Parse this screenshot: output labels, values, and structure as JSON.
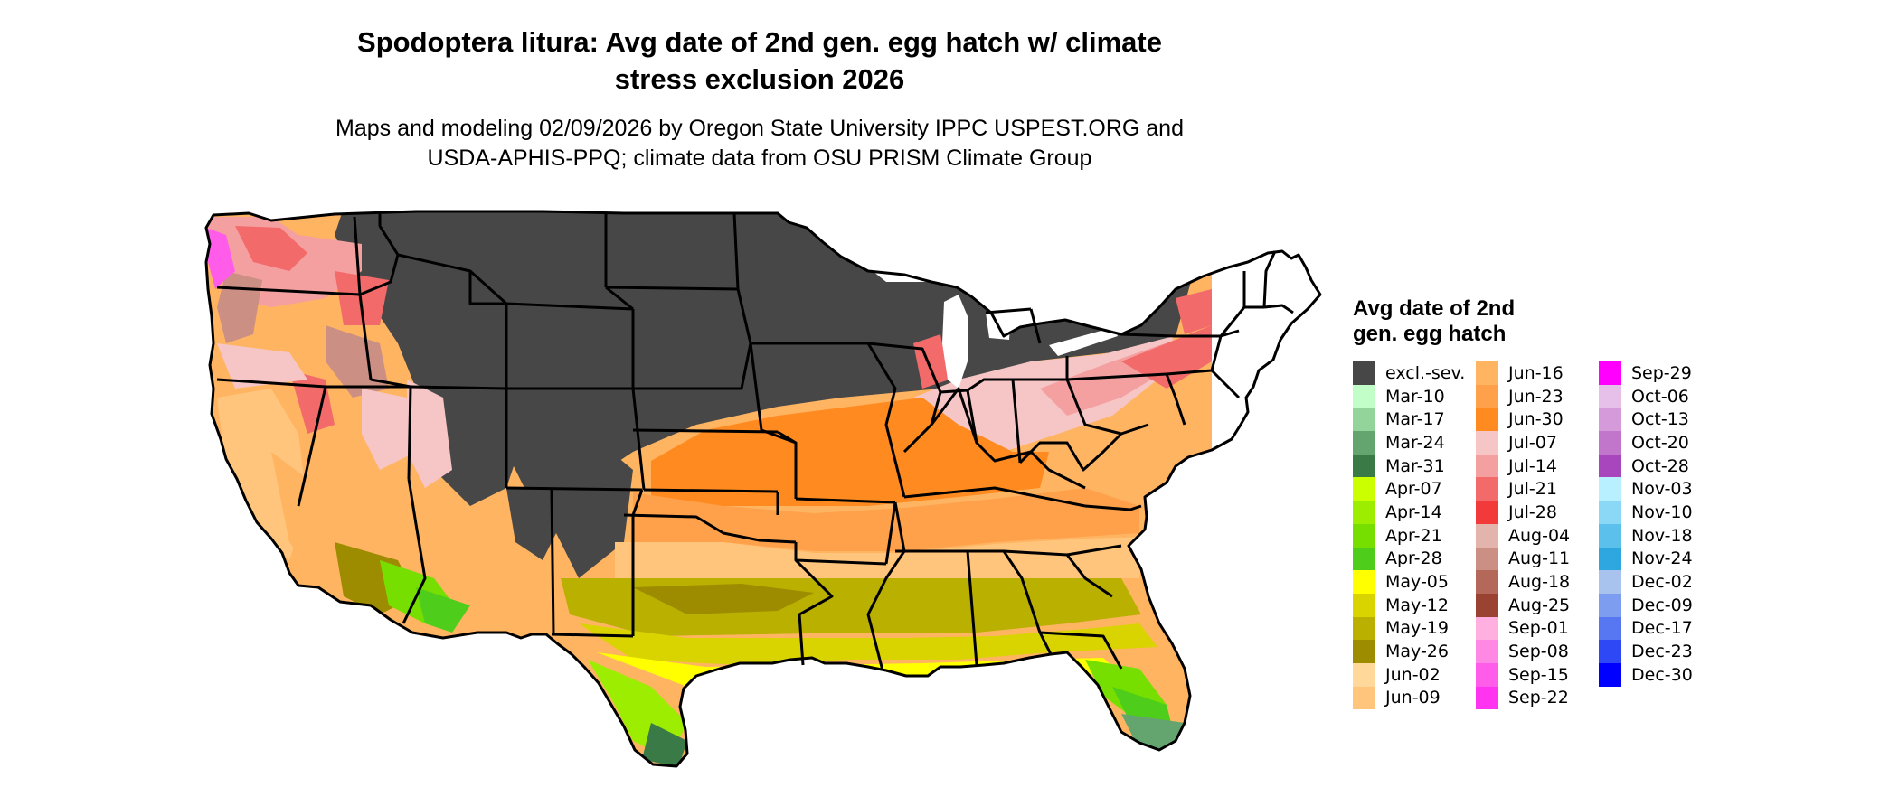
{
  "map": {
    "title_line1": "Spodoptera litura: Avg date of 2nd gen. egg hatch w/ climate",
    "title_line2": "stress exclusion 2026",
    "subtitle_line1": "Maps and modeling 02/09/2026 by Oregon State University IPPC USPEST.ORG and",
    "subtitle_line2": "USDA-APHIS-PPQ; climate data from OSU PRISM Climate Group"
  },
  "legend": {
    "title_line1": "Avg date of 2nd",
    "title_line2": "gen. egg hatch",
    "columns": [
      [
        {
          "label": "excl.-sev.",
          "color": "#474747"
        },
        {
          "label": "Mar-10",
          "color": "#c2ffc8"
        },
        {
          "label": "Mar-17",
          "color": "#93d49a"
        },
        {
          "label": "Mar-24",
          "color": "#64a56f"
        },
        {
          "label": "Mar-31",
          "color": "#3a7a47"
        },
        {
          "label": "Apr-07",
          "color": "#cbff00"
        },
        {
          "label": "Apr-14",
          "color": "#9ded00"
        },
        {
          "label": "Apr-21",
          "color": "#76df00"
        },
        {
          "label": "Apr-28",
          "color": "#4ecd1a"
        },
        {
          "label": "May-05",
          "color": "#ffff00"
        },
        {
          "label": "May-12",
          "color": "#d9d300"
        },
        {
          "label": "May-19",
          "color": "#b9b000"
        },
        {
          "label": "May-26",
          "color": "#9e8c00"
        },
        {
          "label": "Jun-02",
          "color": "#ffd89a"
        },
        {
          "label": "Jun-09",
          "color": "#ffc57d"
        }
      ],
      [
        {
          "label": "Jun-16",
          "color": "#ffb462"
        },
        {
          "label": "Jun-23",
          "color": "#ffa04a"
        },
        {
          "label": "Jun-30",
          "color": "#ff8a1f"
        },
        {
          "label": "Jul-07",
          "color": "#f6c6c6"
        },
        {
          "label": "Jul-14",
          "color": "#f5a0a0"
        },
        {
          "label": "Jul-21",
          "color": "#f36a6a"
        },
        {
          "label": "Jul-28",
          "color": "#f23a3a"
        },
        {
          "label": "Aug-04",
          "color": "#e3b4ab"
        },
        {
          "label": "Aug-11",
          "color": "#cb8f83"
        },
        {
          "label": "Aug-18",
          "color": "#b4685a"
        },
        {
          "label": "Aug-25",
          "color": "#9a4333"
        },
        {
          "label": "Sep-01",
          "color": "#ffb0e0"
        },
        {
          "label": "Sep-08",
          "color": "#ff88e5"
        },
        {
          "label": "Sep-15",
          "color": "#ff5cea"
        },
        {
          "label": "Sep-22",
          "color": "#ff33f0"
        }
      ],
      [
        {
          "label": "Sep-29",
          "color": "#ff00ff"
        },
        {
          "label": "Oct-06",
          "color": "#e6c0e8"
        },
        {
          "label": "Oct-13",
          "color": "#d49ad9"
        },
        {
          "label": "Oct-20",
          "color": "#c176cb"
        },
        {
          "label": "Oct-28",
          "color": "#a847bd"
        },
        {
          "label": "Nov-03",
          "color": "#b8f0ff"
        },
        {
          "label": "Nov-10",
          "color": "#8ad8f5"
        },
        {
          "label": "Nov-18",
          "color": "#5cc0ec"
        },
        {
          "label": "Nov-24",
          "color": "#2ea6e0"
        },
        {
          "label": "Dec-02",
          "color": "#a8c4ee"
        },
        {
          "label": "Dec-09",
          "color": "#7d9ef0"
        },
        {
          "label": "Dec-17",
          "color": "#5676f2"
        },
        {
          "label": "Dec-23",
          "color": "#2e48f5"
        },
        {
          "label": "Dec-30",
          "color": "#0000ff"
        }
      ]
    ]
  }
}
